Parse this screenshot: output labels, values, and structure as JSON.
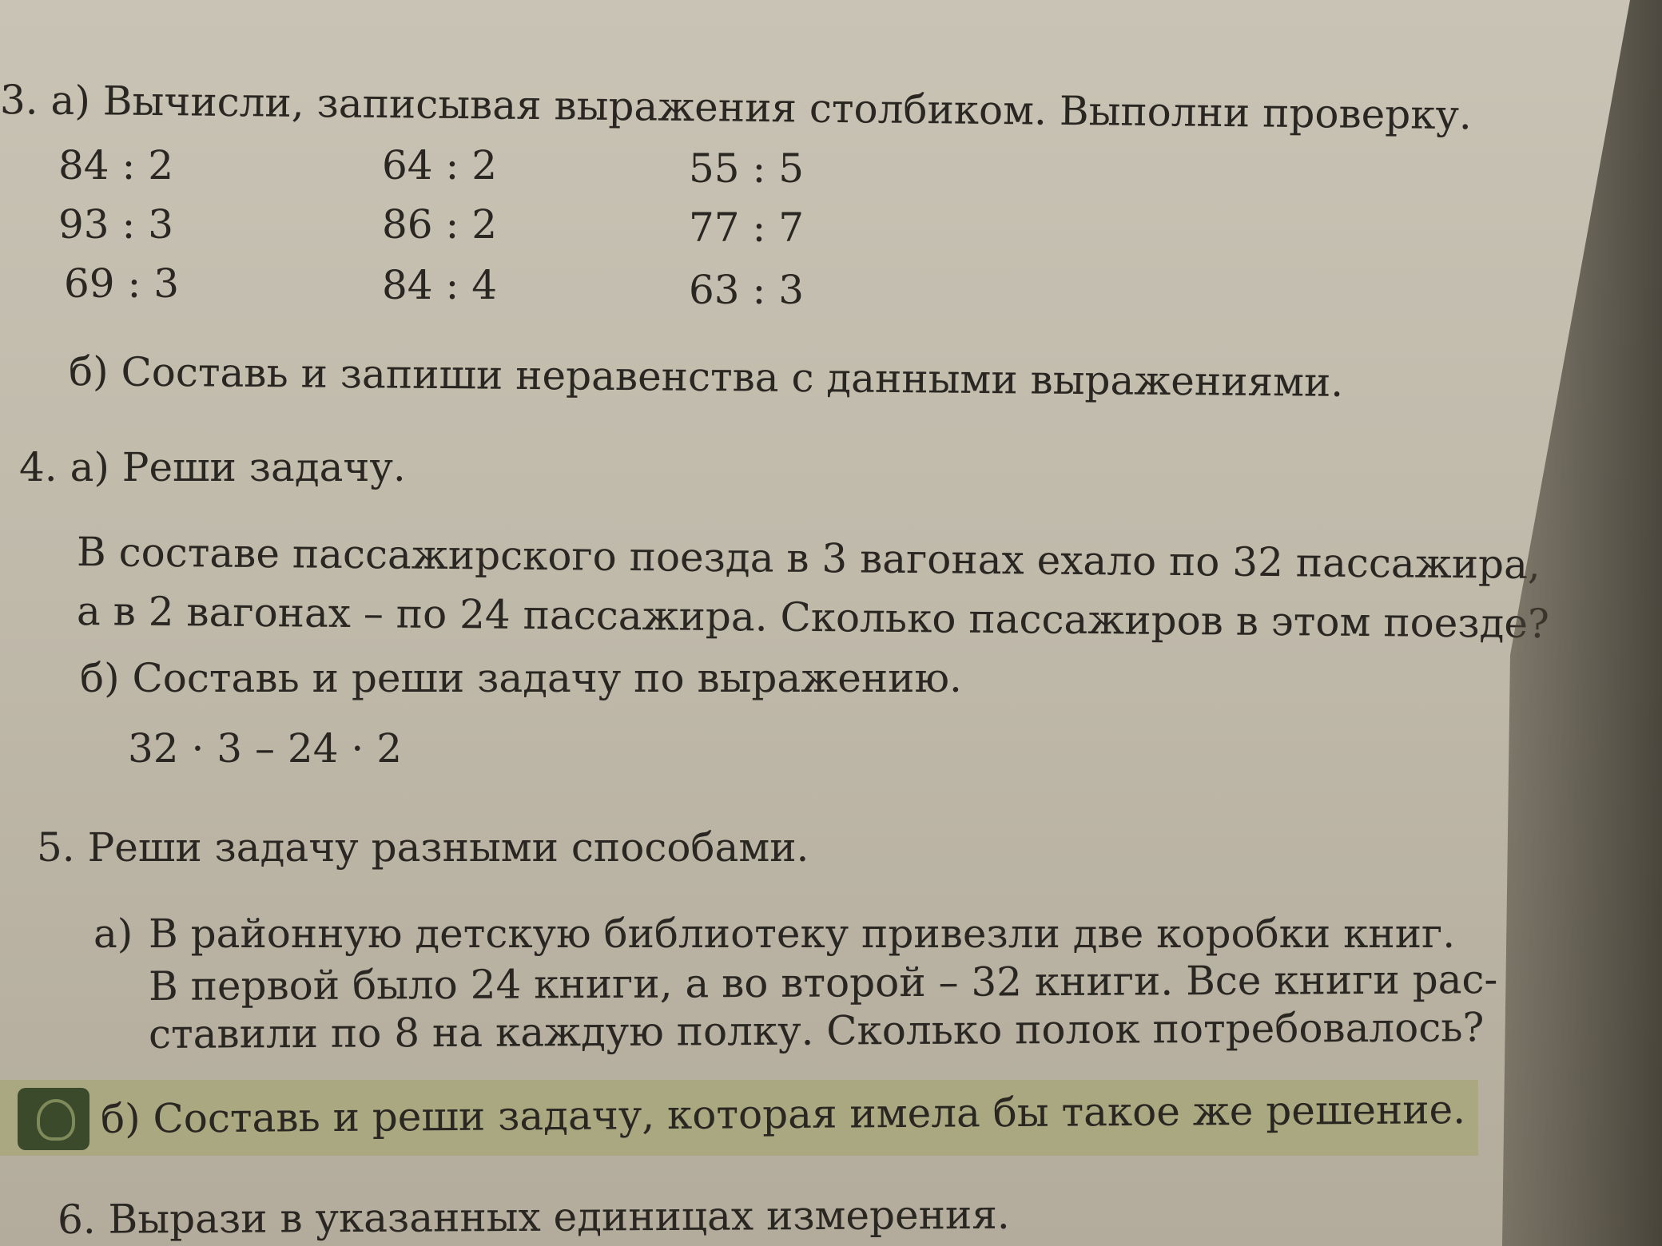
{
  "task3": {
    "a": "3. а) Вычисли, записывая выражения столбиком. Выполни проверку.",
    "expressions": [
      [
        "84 : 2",
        "64 : 2",
        "55 : 5"
      ],
      [
        "93 : 3",
        "86 : 2",
        "77 : 7"
      ],
      [
        "69 : 3",
        "84 : 4",
        "63 : 3"
      ]
    ],
    "b": "б) Составь и запиши неравенства с данными выражениями."
  },
  "task4": {
    "a": "4. а) Реши задачу.",
    "problem": [
      "В составе пассажирского поезда в 3 вагонах ехало по 32 пассажира,",
      "а в 2 вагонах – по 24 пассажира. Сколько пассажиров в этом поезде?"
    ],
    "b": "б) Составь и реши задачу по выражению.",
    "expression": "32 · 3 – 24 · 2"
  },
  "task5": {
    "title": "5. Реши задачу разными способами.",
    "a_label": "а)",
    "a": [
      "В районную детскую библиотеку привезли две коробки книг.",
      "В первой было 24 книги, а во второй – 32 книги. Все книги рас-",
      "ставили по 8 на каждую полку. Сколько полок потребовалось?"
    ],
    "b": "б) Составь и реши задачу, которая имела бы такое же решение.",
    "b_icon": "lightbulb-icon",
    "band_color": "#a7a77a"
  },
  "task6": {
    "title": "6. Вырази в указанных единицах измерения."
  }
}
